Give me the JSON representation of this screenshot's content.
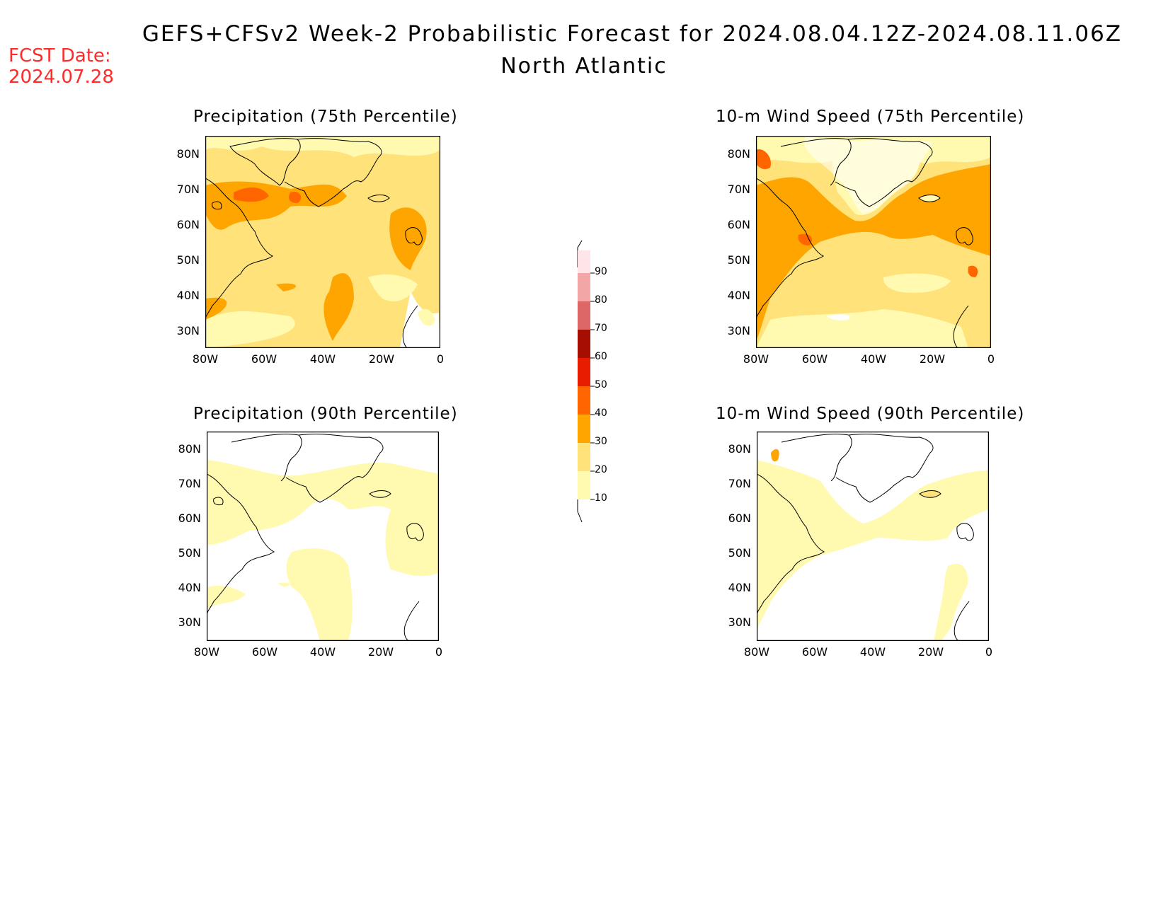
{
  "header": {
    "title": "GEFS+CFSv2 Week-2 Probabilistic Forecast for 2024.08.04.12Z-2024.08.11.06Z",
    "subtitle": "North Atlantic",
    "fcst_label": "FCST Date:",
    "fcst_date": "2024.07.28"
  },
  "axes": {
    "lat_ticks": [
      "80N",
      "70N",
      "60N",
      "50N",
      "40N",
      "30N"
    ],
    "lon_ticks": [
      "80W",
      "60W",
      "40W",
      "20W",
      "0"
    ]
  },
  "panels": [
    {
      "title": "Precipitation (75th Percentile)",
      "variable": "precip",
      "percentile": 75
    },
    {
      "title": "10-m Wind Speed (75th Percentile)",
      "variable": "wind",
      "percentile": 75
    },
    {
      "title": "Precipitation (90th Percentile)",
      "variable": "precip",
      "percentile": 90
    },
    {
      "title": "10-m Wind Speed (90th Percentile)",
      "variable": "wind",
      "percentile": 90
    }
  ],
  "colorbar": {
    "levels": [
      "10",
      "20",
      "30",
      "40",
      "50",
      "60",
      "70",
      "80",
      "90"
    ],
    "colors": [
      "#fffab0",
      "#ffe27a",
      "#ffa500",
      "#ff6600",
      "#e81c00",
      "#a50e00",
      "#dd6666",
      "#f2a6a6",
      "#ffe4e8"
    ]
  }
}
